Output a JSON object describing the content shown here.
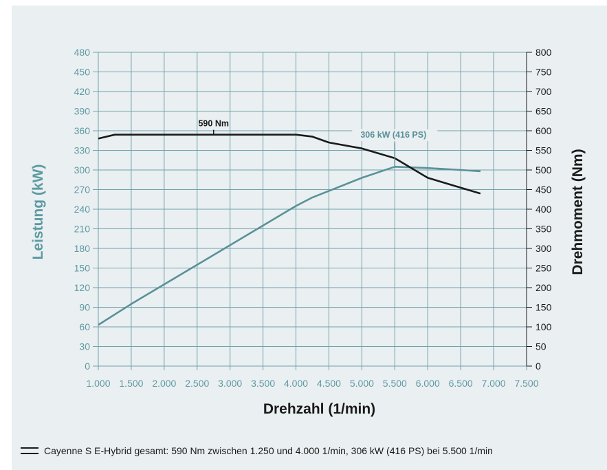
{
  "chart_data": {
    "type": "line",
    "xlabel": "Drehzahl (1/min)",
    "ylabel_left": "Leistung (kW)",
    "ylabel_right": "Drehmoment (Nm)",
    "x_ticks": [
      "1.000",
      "1.500",
      "2.000",
      "2.500",
      "3.000",
      "3.500",
      "4.000",
      "4.500",
      "5.000",
      "5.500",
      "6.000",
      "6.500",
      "7.000",
      "7.500"
    ],
    "y_left_ticks": [
      "0",
      "30",
      "60",
      "90",
      "120",
      "150",
      "180",
      "210",
      "240",
      "270",
      "300",
      "330",
      "360",
      "390",
      "420",
      "450",
      "480"
    ],
    "y_right_ticks": [
      "0",
      "50",
      "100",
      "150",
      "200",
      "250",
      "300",
      "350",
      "400",
      "450",
      "500",
      "550",
      "600",
      "650",
      "700",
      "750",
      "800"
    ],
    "xlim": [
      1000,
      7500
    ],
    "ylim_left": [
      0,
      480
    ],
    "ylim_right": [
      0,
      800
    ],
    "grid": true,
    "series": [
      {
        "name": "Leistung",
        "axis": "left",
        "color": "#5a9199",
        "points": [
          [
            1000,
            63
          ],
          [
            1500,
            95
          ],
          [
            2000,
            125
          ],
          [
            2500,
            155
          ],
          [
            3000,
            185
          ],
          [
            3500,
            215
          ],
          [
            4000,
            245
          ],
          [
            4250,
            258
          ],
          [
            4500,
            268
          ],
          [
            5000,
            288
          ],
          [
            5500,
            305
          ],
          [
            6000,
            303
          ],
          [
            6500,
            300
          ],
          [
            6800,
            298
          ]
        ]
      },
      {
        "name": "Drehmoment",
        "axis": "right",
        "color": "#1a1a1a",
        "points": [
          [
            1000,
            580
          ],
          [
            1250,
            590
          ],
          [
            1500,
            590
          ],
          [
            2000,
            590
          ],
          [
            2500,
            590
          ],
          [
            3000,
            590
          ],
          [
            3500,
            590
          ],
          [
            4000,
            590
          ],
          [
            4250,
            585
          ],
          [
            4500,
            570
          ],
          [
            5000,
            555
          ],
          [
            5500,
            530
          ],
          [
            6000,
            480
          ],
          [
            6500,
            455
          ],
          [
            6800,
            440
          ]
        ]
      }
    ],
    "annotations": [
      {
        "text": "590 Nm",
        "x": 2750,
        "y": 590,
        "axis": "right",
        "color": "#1a1a1a"
      },
      {
        "text": "306 kW (416 PS)",
        "x": 5500,
        "y": 306,
        "axis": "left",
        "color": "#5a9199"
      }
    ],
    "legend": {
      "position": "bottom-left",
      "text": "Cayenne S E-Hybrid gesamt: 590 Nm zwischen 1.250 und 4.000 1/min, 306 kW (416 PS) bei 5.500 1/min"
    }
  }
}
